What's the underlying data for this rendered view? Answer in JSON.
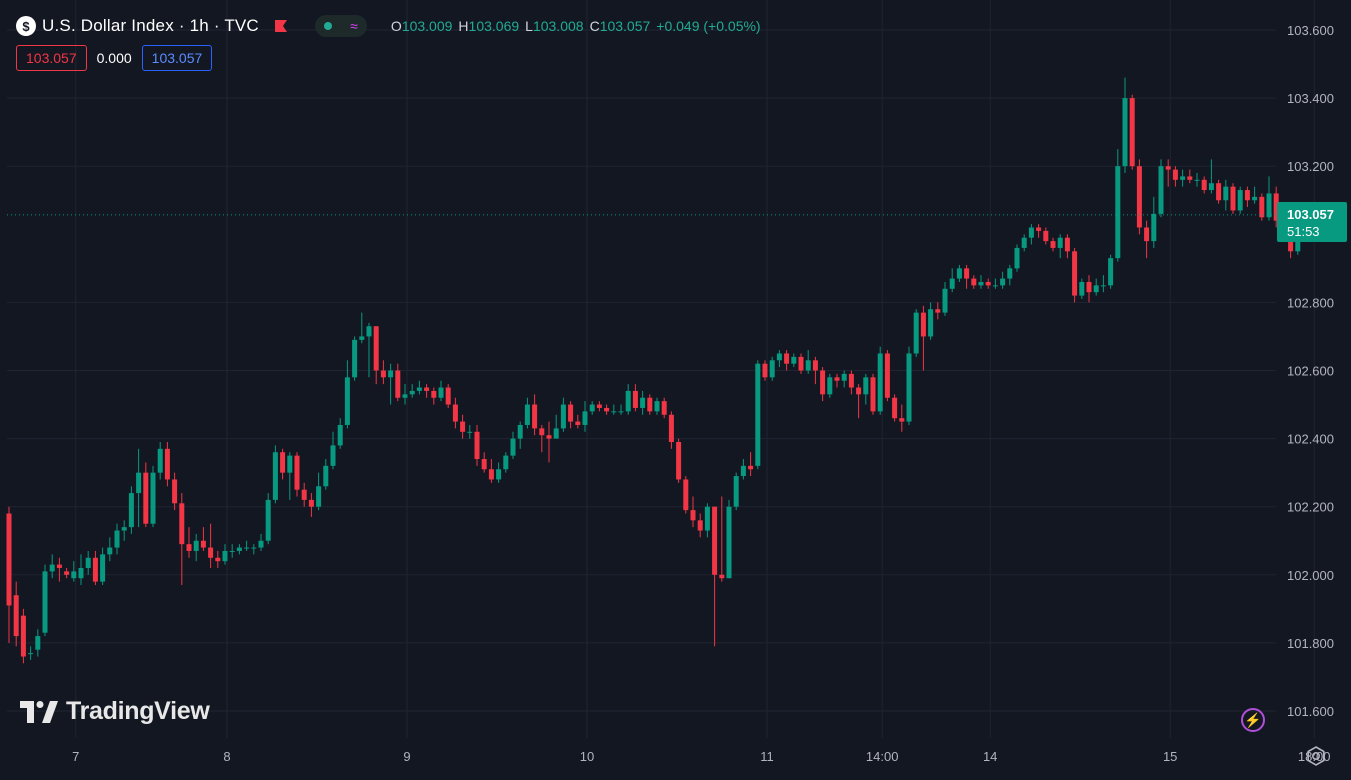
{
  "header": {
    "symbol_icon": "$",
    "title": "U.S. Dollar Index · 1h · TVC",
    "ohlc": {
      "o_label": "O",
      "o": "103.009",
      "h_label": "H",
      "h": "103.069",
      "l_label": "L",
      "l": "103.008",
      "c_label": "C",
      "c": "103.057",
      "change": "+0.049 (+0.05%)"
    },
    "boxes": {
      "bid": "103.057",
      "spread": "0.000",
      "ask": "103.057"
    }
  },
  "price_tag": {
    "price": "103.057",
    "countdown": "51:53"
  },
  "logo_text": "TradingView",
  "icons": {
    "bolt": "⚡",
    "wave": "≈"
  },
  "colors": {
    "up": "#089981",
    "down": "#f23645",
    "background": "#131722",
    "grid": "#1f2431",
    "axis_text": "#b2b5be"
  },
  "chart_data": {
    "type": "candlestick",
    "title": "U.S. Dollar Index · 1h · TVC",
    "y_axis": {
      "ticks": [
        "103.600",
        "103.400",
        "103.200",
        "102.800",
        "102.600",
        "102.400",
        "102.200",
        "102.000",
        "101.800",
        "101.600"
      ],
      "range": [
        101.56,
        103.65
      ]
    },
    "x_axis": {
      "ticks": [
        "7",
        "8",
        "9",
        "10",
        "11",
        "14:00",
        "14",
        "15",
        "18:00"
      ],
      "tick_index": [
        9,
        30,
        55,
        80,
        105,
        121,
        136,
        161,
        181
      ]
    },
    "last_price": 103.057,
    "candles": [
      [
        102.18,
        101.91,
        102.2,
        101.8
      ],
      [
        101.94,
        101.82,
        101.98,
        101.79
      ],
      [
        101.88,
        101.76,
        101.9,
        101.74
      ],
      [
        101.77,
        101.77,
        101.79,
        101.75
      ],
      [
        101.78,
        101.82,
        101.84,
        101.76
      ],
      [
        101.83,
        102.01,
        102.03,
        101.82
      ],
      [
        102.01,
        102.03,
        102.06,
        101.99
      ],
      [
        102.03,
        102.02,
        102.05,
        101.98
      ],
      [
        102.01,
        102.0,
        102.02,
        101.99
      ],
      [
        101.99,
        102.01,
        102.04,
        101.98
      ],
      [
        101.99,
        102.02,
        102.06,
        101.97
      ],
      [
        102.02,
        102.05,
        102.07,
        102.0
      ],
      [
        102.05,
        101.98,
        102.07,
        101.97
      ],
      [
        101.98,
        102.06,
        102.08,
        101.97
      ],
      [
        102.06,
        102.08,
        102.11,
        102.04
      ],
      [
        102.08,
        102.13,
        102.15,
        102.06
      ],
      [
        102.13,
        102.14,
        102.16,
        102.1
      ],
      [
        102.14,
        102.24,
        102.26,
        102.12
      ],
      [
        102.24,
        102.3,
        102.37,
        102.14
      ],
      [
        102.3,
        102.15,
        102.33,
        102.14
      ],
      [
        102.15,
        102.3,
        102.32,
        102.14
      ],
      [
        102.3,
        102.37,
        102.39,
        102.28
      ],
      [
        102.37,
        102.28,
        102.39,
        102.26
      ],
      [
        102.28,
        102.21,
        102.3,
        102.19
      ],
      [
        102.21,
        102.09,
        102.24,
        101.97
      ],
      [
        102.09,
        102.07,
        102.14,
        102.05
      ],
      [
        102.07,
        102.1,
        102.12,
        102.04
      ],
      [
        102.1,
        102.08,
        102.14,
        102.07
      ],
      [
        102.08,
        102.05,
        102.15,
        102.02
      ],
      [
        102.05,
        102.04,
        102.07,
        102.02
      ],
      [
        102.04,
        102.07,
        102.09,
        102.03
      ],
      [
        102.07,
        102.07,
        102.09,
        102.05
      ],
      [
        102.07,
        102.08,
        102.09,
        102.06
      ],
      [
        102.08,
        102.08,
        102.1,
        102.07
      ],
      [
        102.08,
        102.08,
        102.09,
        102.06
      ],
      [
        102.08,
        102.1,
        102.12,
        102.07
      ],
      [
        102.1,
        102.22,
        102.24,
        102.09
      ],
      [
        102.22,
        102.36,
        102.38,
        102.21
      ],
      [
        102.36,
        102.3,
        102.37,
        102.28
      ],
      [
        102.3,
        102.35,
        102.36,
        102.22
      ],
      [
        102.35,
        102.25,
        102.36,
        102.23
      ],
      [
        102.25,
        102.22,
        102.27,
        102.2
      ],
      [
        102.22,
        102.2,
        102.24,
        102.17
      ],
      [
        102.2,
        102.26,
        102.3,
        102.19
      ],
      [
        102.26,
        102.32,
        102.34,
        102.25
      ],
      [
        102.32,
        102.38,
        102.42,
        102.31
      ],
      [
        102.38,
        102.44,
        102.46,
        102.37
      ],
      [
        102.44,
        102.58,
        102.63,
        102.43
      ],
      [
        102.58,
        102.69,
        102.7,
        102.57
      ],
      [
        102.69,
        102.7,
        102.77,
        102.68
      ],
      [
        102.7,
        102.73,
        102.74,
        102.58
      ],
      [
        102.73,
        102.6,
        102.73,
        102.56
      ],
      [
        102.6,
        102.58,
        102.63,
        102.56
      ],
      [
        102.58,
        102.6,
        102.62,
        102.5
      ],
      [
        102.6,
        102.52,
        102.62,
        102.51
      ],
      [
        102.52,
        102.53,
        102.56,
        102.5
      ],
      [
        102.53,
        102.54,
        102.56,
        102.52
      ],
      [
        102.54,
        102.55,
        102.57,
        102.53
      ],
      [
        102.55,
        102.54,
        102.56,
        102.52
      ],
      [
        102.54,
        102.52,
        102.55,
        102.5
      ],
      [
        102.52,
        102.55,
        102.57,
        102.51
      ],
      [
        102.55,
        102.5,
        102.56,
        102.49
      ],
      [
        102.5,
        102.45,
        102.52,
        102.43
      ],
      [
        102.45,
        102.42,
        102.47,
        102.4
      ],
      [
        102.42,
        102.42,
        102.44,
        102.4
      ],
      [
        102.42,
        102.34,
        102.44,
        102.32
      ],
      [
        102.34,
        102.31,
        102.36,
        102.3
      ],
      [
        102.31,
        102.28,
        102.34,
        102.27
      ],
      [
        102.28,
        102.31,
        102.33,
        102.27
      ],
      [
        102.31,
        102.35,
        102.36,
        102.3
      ],
      [
        102.35,
        102.4,
        102.42,
        102.34
      ],
      [
        102.4,
        102.44,
        102.45,
        102.37
      ],
      [
        102.44,
        102.5,
        102.52,
        102.43
      ],
      [
        102.5,
        102.43,
        102.53,
        102.41
      ],
      [
        102.43,
        102.41,
        102.44,
        102.36
      ],
      [
        102.41,
        102.4,
        102.45,
        102.33
      ],
      [
        102.4,
        102.43,
        102.47,
        102.4
      ],
      [
        102.43,
        102.5,
        102.52,
        102.42
      ],
      [
        102.5,
        102.45,
        102.51,
        102.43
      ],
      [
        102.45,
        102.44,
        102.47,
        102.43
      ],
      [
        102.44,
        102.48,
        102.51,
        102.42
      ],
      [
        102.48,
        102.5,
        102.51,
        102.47
      ],
      [
        102.5,
        102.49,
        102.51,
        102.48
      ],
      [
        102.49,
        102.48,
        102.5,
        102.47
      ],
      [
        102.48,
        102.48,
        102.5,
        102.47
      ],
      [
        102.48,
        102.48,
        102.5,
        102.47
      ],
      [
        102.48,
        102.54,
        102.56,
        102.47
      ],
      [
        102.54,
        102.49,
        102.56,
        102.48
      ],
      [
        102.49,
        102.52,
        102.54,
        102.47
      ],
      [
        102.52,
        102.48,
        102.53,
        102.47
      ],
      [
        102.48,
        102.51,
        102.52,
        102.47
      ],
      [
        102.51,
        102.47,
        102.52,
        102.46
      ],
      [
        102.47,
        102.39,
        102.48,
        102.37
      ],
      [
        102.39,
        102.28,
        102.4,
        102.27
      ],
      [
        102.28,
        102.19,
        102.29,
        102.18
      ],
      [
        102.19,
        102.16,
        102.23,
        102.14
      ],
      [
        102.16,
        102.13,
        102.18,
        102.11
      ],
      [
        102.13,
        102.2,
        102.21,
        102.11
      ],
      [
        102.2,
        102.0,
        102.2,
        101.79
      ],
      [
        102.0,
        101.99,
        102.23,
        101.98
      ],
      [
        101.99,
        102.2,
        102.22,
        101.99
      ],
      [
        102.2,
        102.29,
        102.3,
        102.19
      ],
      [
        102.29,
        102.32,
        102.34,
        102.28
      ],
      [
        102.32,
        102.31,
        102.36,
        102.29
      ],
      [
        102.32,
        102.62,
        102.63,
        102.31
      ],
      [
        102.62,
        102.58,
        102.63,
        102.57
      ],
      [
        102.58,
        102.63,
        102.64,
        102.57
      ],
      [
        102.63,
        102.65,
        102.66,
        102.61
      ],
      [
        102.65,
        102.62,
        102.66,
        102.6
      ],
      [
        102.62,
        102.64,
        102.65,
        102.61
      ],
      [
        102.64,
        102.6,
        102.65,
        102.59
      ],
      [
        102.6,
        102.63,
        102.66,
        102.59
      ],
      [
        102.63,
        102.6,
        102.64,
        102.56
      ],
      [
        102.6,
        102.53,
        102.61,
        102.51
      ],
      [
        102.53,
        102.58,
        102.59,
        102.52
      ],
      [
        102.58,
        102.57,
        102.59,
        102.55
      ],
      [
        102.57,
        102.59,
        102.6,
        102.55
      ],
      [
        102.59,
        102.55,
        102.6,
        102.53
      ],
      [
        102.55,
        102.53,
        102.56,
        102.46
      ],
      [
        102.53,
        102.58,
        102.59,
        102.5
      ],
      [
        102.58,
        102.48,
        102.59,
        102.47
      ],
      [
        102.48,
        102.65,
        102.67,
        102.47
      ],
      [
        102.65,
        102.52,
        102.66,
        102.51
      ],
      [
        102.52,
        102.46,
        102.53,
        102.45
      ],
      [
        102.46,
        102.45,
        102.5,
        102.42
      ],
      [
        102.45,
        102.65,
        102.67,
        102.44
      ],
      [
        102.65,
        102.77,
        102.78,
        102.64
      ],
      [
        102.77,
        102.7,
        102.79,
        102.6
      ],
      [
        102.7,
        102.78,
        102.8,
        102.69
      ],
      [
        102.78,
        102.77,
        102.8,
        102.75
      ],
      [
        102.77,
        102.84,
        102.86,
        102.76
      ],
      [
        102.84,
        102.87,
        102.9,
        102.83
      ],
      [
        102.87,
        102.9,
        102.91,
        102.86
      ],
      [
        102.9,
        102.87,
        102.91,
        102.84
      ],
      [
        102.87,
        102.85,
        102.88,
        102.84
      ],
      [
        102.85,
        102.86,
        102.88,
        102.84
      ],
      [
        102.86,
        102.85,
        102.87,
        102.84
      ],
      [
        102.85,
        102.85,
        102.87,
        102.84
      ],
      [
        102.85,
        102.87,
        102.89,
        102.84
      ],
      [
        102.87,
        102.9,
        102.91,
        102.85
      ],
      [
        102.9,
        102.96,
        102.97,
        102.89
      ],
      [
        102.96,
        102.99,
        103.0,
        102.95
      ],
      [
        102.99,
        103.02,
        103.03,
        102.97
      ],
      [
        103.02,
        103.01,
        103.03,
        102.99
      ],
      [
        103.01,
        102.98,
        103.02,
        102.97
      ],
      [
        102.98,
        102.96,
        102.99,
        102.95
      ],
      [
        102.96,
        102.99,
        103.0,
        102.93
      ],
      [
        102.99,
        102.95,
        103.0,
        102.93
      ],
      [
        102.95,
        102.82,
        102.96,
        102.8
      ],
      [
        102.82,
        102.86,
        102.87,
        102.81
      ],
      [
        102.86,
        102.83,
        102.88,
        102.8
      ],
      [
        102.83,
        102.85,
        102.87,
        102.82
      ],
      [
        102.85,
        102.85,
        102.88,
        102.83
      ],
      [
        102.85,
        102.93,
        102.94,
        102.84
      ],
      [
        102.93,
        103.2,
        103.25,
        102.92
      ],
      [
        103.2,
        103.4,
        103.46,
        103.18
      ],
      [
        103.4,
        103.2,
        103.41,
        103.19
      ],
      [
        103.2,
        103.02,
        103.22,
        103.0
      ],
      [
        103.02,
        102.98,
        103.04,
        102.93
      ],
      [
        102.98,
        103.06,
        103.11,
        102.96
      ],
      [
        103.06,
        103.2,
        103.22,
        103.05
      ],
      [
        103.2,
        103.19,
        103.22,
        103.14
      ],
      [
        103.19,
        103.16,
        103.2,
        103.14
      ],
      [
        103.16,
        103.17,
        103.19,
        103.14
      ],
      [
        103.17,
        103.16,
        103.19,
        103.15
      ],
      [
        103.16,
        103.16,
        103.18,
        103.14
      ],
      [
        103.16,
        103.13,
        103.17,
        103.12
      ],
      [
        103.13,
        103.15,
        103.22,
        103.12
      ],
      [
        103.15,
        103.1,
        103.16,
        103.09
      ],
      [
        103.1,
        103.14,
        103.16,
        103.07
      ],
      [
        103.14,
        103.07,
        103.15,
        103.06
      ],
      [
        103.07,
        103.13,
        103.14,
        103.06
      ],
      [
        103.13,
        103.1,
        103.14,
        103.08
      ],
      [
        103.1,
        103.11,
        103.14,
        103.09
      ],
      [
        103.11,
        103.05,
        103.12,
        103.04
      ],
      [
        103.05,
        103.12,
        103.17,
        103.04
      ],
      [
        103.12,
        103.04,
        103.14,
        103.02
      ],
      [
        103.04,
        103.02,
        103.05,
        103.0
      ],
      [
        103.02,
        102.95,
        103.03,
        102.93
      ],
      [
        102.95,
        103.01,
        103.02,
        102.94
      ],
      [
        103.009,
        103.057,
        103.069,
        103.008
      ]
    ]
  }
}
